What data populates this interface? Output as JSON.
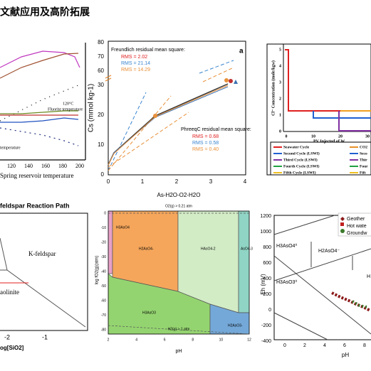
{
  "title": "文献应用及高阶拓展",
  "panel1": {
    "labels": [
      "120°C",
      "Fluorite temperature",
      "temperature"
    ],
    "xticks": [
      120,
      140,
      160,
      180,
      200
    ],
    "xlabel": "Spring reservoir temperature"
  },
  "panel2": {
    "ylabel": "Cs (mmol kg-1)",
    "yticks": [
      0,
      10,
      20,
      30
    ],
    "yticks_top": [
      60,
      70,
      80
    ],
    "xticks": [
      0,
      1,
      2,
      3,
      4
    ],
    "panel_letter": "a",
    "freundlich": {
      "heading": "Freundlich residual mean square:",
      "rms": [
        "RMS = 2.02",
        "RMS = 21.14",
        "RMS = 14.29"
      ]
    },
    "phreeqc": {
      "heading": "PhreeqC residual mean square:",
      "rms": [
        "RMS = 0.68",
        "RMS = 0.58",
        "RMS = 0.40"
      ]
    }
  },
  "panel3": {
    "ylabel": "Cl⁻ Concentration (mole/kgw)",
    "yticks": [
      0,
      1,
      2,
      3,
      4,
      5
    ],
    "xticks": [
      0,
      10,
      20,
      30
    ],
    "xlabel": "PV Injected of W",
    "legend": [
      "Seawater Cycle",
      "CO2",
      "Second Cycle (LSWI)",
      "Seco",
      "Third Cycle (LSWI)",
      "Thir",
      "Fourth Cycle (LSWI)",
      "Four",
      "Fifth Cycle (LSWI)",
      "Fift"
    ]
  },
  "panel4": {
    "title": "feldspar Reaction Path",
    "regions": [
      "K-feldspar",
      "aolinite"
    ],
    "xticks": [
      -2,
      -1
    ],
    "xlabel": "og[SiO2]"
  },
  "panel5": {
    "title": "As-H2O-O2-H2O",
    "top_note": "O2(g) > 0.21 atm",
    "bottom_note": "H2(g) > 1 atm",
    "ylabel": "log fO2(g)(atm)",
    "yticks": [
      0,
      -10,
      -20,
      -30,
      -40,
      -50,
      -60,
      -70,
      -80
    ],
    "xticks": [
      2,
      4,
      6,
      8,
      10,
      12
    ],
    "xlabel": "pH",
    "regions": [
      "H3AsO4",
      "H2AsO4-",
      "HAsO4-2",
      "AsO4-3",
      "H3AsO3",
      "H2AsO3-"
    ]
  },
  "panel6": {
    "ylabel": "Eh (mV)",
    "yticks": [
      1200,
      1000,
      800,
      600,
      400,
      200,
      0,
      -200,
      -400
    ],
    "xticks": [
      0,
      2,
      4,
      6,
      8
    ],
    "xlabel": "pH",
    "legend": [
      "Geother",
      "Hot wate",
      "Groundw"
    ],
    "regions": [
      "H3AsO4⁰",
      "H2AsO4⁻",
      "H3AsO3⁰",
      "H"
    ]
  }
}
